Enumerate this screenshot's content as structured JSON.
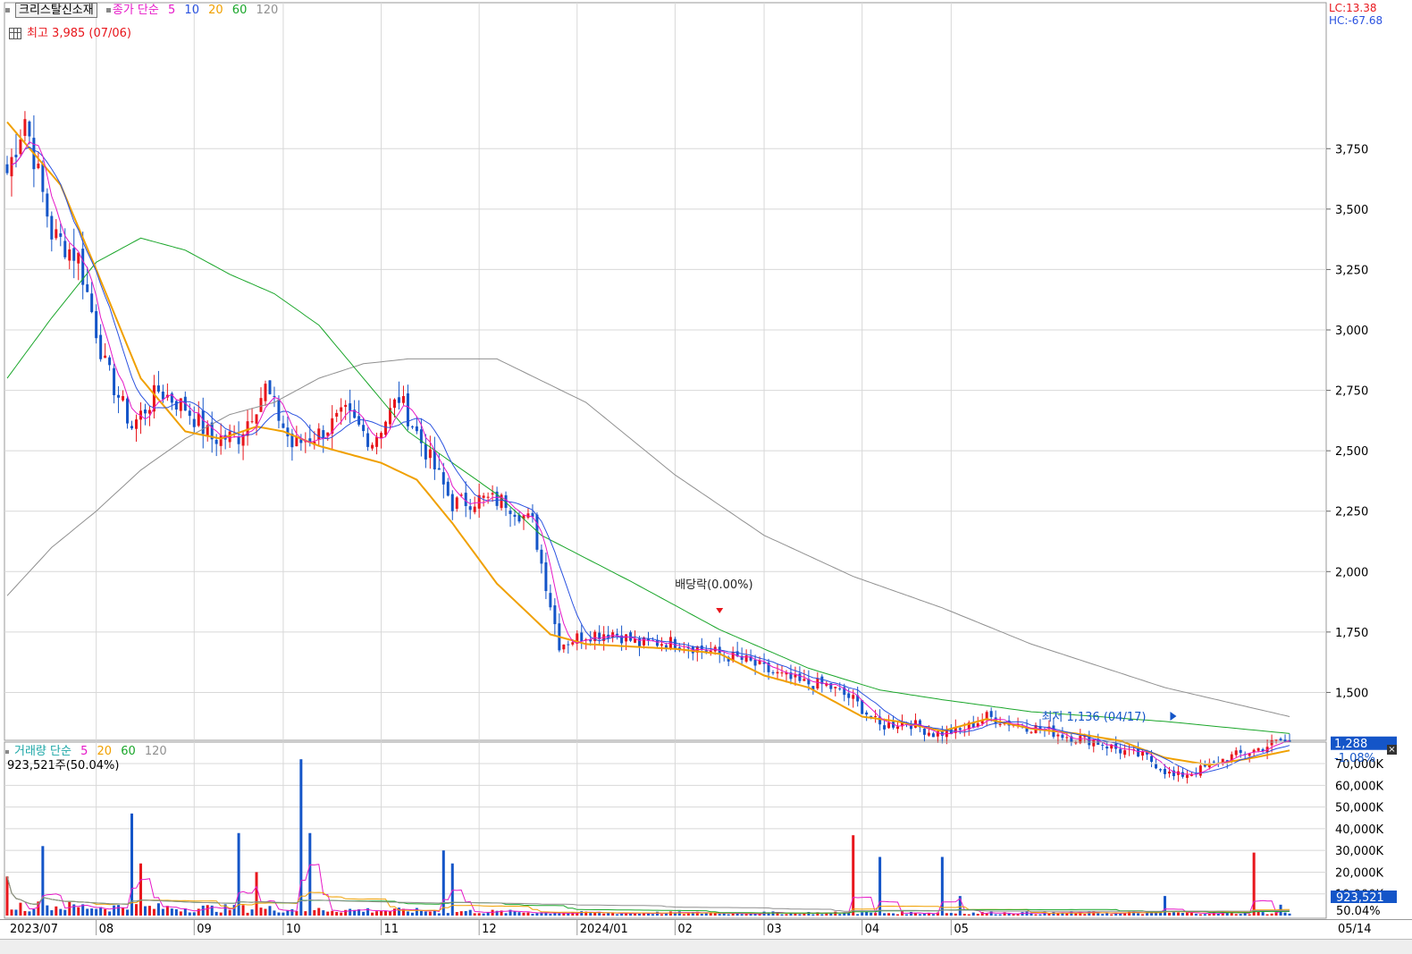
{
  "header": {
    "stock_name": "크리스탈신소재",
    "price_legend_label": "종가 단순",
    "ma_periods": [
      "5",
      "10",
      "20",
      "60",
      "120"
    ],
    "high_label": "최고 3,985 (07/06)",
    "lc_label": "LC:13.38",
    "hc_label": "HC:-67.68"
  },
  "volume_header": {
    "label": "거래량 단순",
    "ma_periods": [
      "5",
      "20",
      "60",
      "120"
    ],
    "current": "923,521주(50.04%)"
  },
  "annotations": {
    "dividend": "배당락(0.00%)",
    "low": "최저 1,136 (04/17)"
  },
  "current_price": {
    "price": "1,288",
    "change": "-1.08%"
  },
  "current_volume": {
    "volume": "923,521",
    "ratio": "50.04%"
  },
  "colors": {
    "up": "#e8161c",
    "down": "#1455c8",
    "ma5": "#e619c8",
    "ma10": "#2a52e0",
    "ma20": "#f0a000",
    "ma60": "#1aa62a",
    "ma120": "#909090",
    "grid": "#d8d8d8"
  },
  "chart_data": [
    {
      "type": "candlestick",
      "x_ticks": [
        "2023/07",
        "08",
        "09",
        "10",
        "11",
        "12",
        "2024/01",
        "02",
        "03",
        "04",
        "05",
        "05/14"
      ],
      "y_ticks": [
        "1,500",
        "1,750",
        "2,000",
        "2,250",
        "2,500",
        "2,750",
        "3,000",
        "3,250",
        "3,500",
        "3,750"
      ],
      "ylim": [
        1080,
        4000
      ],
      "high": 3985,
      "low": 1136,
      "last_close": 1288,
      "close_anchors": [
        [
          0,
          3650
        ],
        [
          4,
          3880
        ],
        [
          10,
          3400
        ],
        [
          16,
          3300
        ],
        [
          22,
          2850
        ],
        [
          28,
          2600
        ],
        [
          34,
          2750
        ],
        [
          40,
          2680
        ],
        [
          46,
          2550
        ],
        [
          52,
          2560
        ],
        [
          58,
          2760
        ],
        [
          64,
          2520
        ],
        [
          70,
          2570
        ],
        [
          76,
          2650
        ],
        [
          82,
          2540
        ],
        [
          88,
          2720
        ],
        [
          94,
          2500
        ],
        [
          100,
          2280
        ],
        [
          106,
          2300
        ],
        [
          112,
          2290
        ],
        [
          118,
          2200
        ],
        [
          124,
          1700
        ],
        [
          130,
          1740
        ],
        [
          136,
          1750
        ],
        [
          142,
          1700
        ],
        [
          148,
          1710
        ],
        [
          154,
          1690
        ],
        [
          160,
          1660
        ],
        [
          166,
          1630
        ],
        [
          172,
          1580
        ],
        [
          178,
          1540
        ],
        [
          184,
          1530
        ],
        [
          190,
          1470
        ],
        [
          196,
          1360
        ],
        [
          202,
          1380
        ],
        [
          208,
          1330
        ],
        [
          214,
          1340
        ],
        [
          220,
          1400
        ],
        [
          226,
          1370
        ],
        [
          232,
          1350
        ],
        [
          238,
          1320
        ],
        [
          244,
          1300
        ],
        [
          250,
          1260
        ],
        [
          256,
          1230
        ],
        [
          262,
          1150
        ],
        [
          268,
          1180
        ],
        [
          274,
          1230
        ],
        [
          280,
          1260
        ],
        [
          286,
          1300
        ],
        [
          288,
          1288
        ]
      ],
      "ma_anchors": {
        "ma20": [
          [
            0,
            3860
          ],
          [
            12,
            3600
          ],
          [
            20,
            3250
          ],
          [
            30,
            2800
          ],
          [
            40,
            2580
          ],
          [
            48,
            2550
          ],
          [
            56,
            2600
          ],
          [
            62,
            2580
          ],
          [
            70,
            2520
          ],
          [
            84,
            2450
          ],
          [
            92,
            2380
          ],
          [
            100,
            2200
          ],
          [
            110,
            1950
          ],
          [
            122,
            1740
          ],
          [
            130,
            1700
          ],
          [
            140,
            1690
          ],
          [
            150,
            1680
          ],
          [
            160,
            1660
          ],
          [
            170,
            1570
          ],
          [
            180,
            1520
          ],
          [
            192,
            1400
          ],
          [
            200,
            1380
          ],
          [
            210,
            1340
          ],
          [
            220,
            1390
          ],
          [
            230,
            1350
          ],
          [
            240,
            1330
          ],
          [
            250,
            1300
          ],
          [
            260,
            1230
          ],
          [
            270,
            1200
          ],
          [
            280,
            1230
          ],
          [
            288,
            1260
          ]
        ],
        "ma60": [
          [
            0,
            2800
          ],
          [
            10,
            3050
          ],
          [
            20,
            3280
          ],
          [
            30,
            3380
          ],
          [
            40,
            3330
          ],
          [
            50,
            3230
          ],
          [
            60,
            3150
          ],
          [
            70,
            3020
          ],
          [
            80,
            2800
          ],
          [
            90,
            2580
          ],
          [
            100,
            2450
          ],
          [
            110,
            2320
          ],
          [
            120,
            2150
          ],
          [
            140,
            1960
          ],
          [
            160,
            1760
          ],
          [
            180,
            1600
          ],
          [
            196,
            1510
          ],
          [
            210,
            1470
          ],
          [
            230,
            1420
          ],
          [
            260,
            1380
          ],
          [
            288,
            1330
          ]
        ],
        "ma120": [
          [
            0,
            1900
          ],
          [
            10,
            2100
          ],
          [
            20,
            2250
          ],
          [
            30,
            2420
          ],
          [
            40,
            2550
          ],
          [
            50,
            2650
          ],
          [
            60,
            2700
          ],
          [
            70,
            2800
          ],
          [
            80,
            2860
          ],
          [
            90,
            2880
          ],
          [
            110,
            2880
          ],
          [
            130,
            2700
          ],
          [
            150,
            2400
          ],
          [
            170,
            2150
          ],
          [
            190,
            1980
          ],
          [
            210,
            1850
          ],
          [
            230,
            1700
          ],
          [
            260,
            1520
          ],
          [
            288,
            1400
          ]
        ]
      }
    },
    {
      "type": "bar",
      "series_name": "거래량",
      "y_ticks": [
        "10,000K",
        "20,000K",
        "30,000K",
        "40,000K",
        "50,000K",
        "60,000K",
        "70,000K"
      ],
      "ylim": [
        0,
        75000
      ],
      "unit": "K",
      "last_volume_k": 923,
      "spikes_k": [
        [
          0,
          18000
        ],
        [
          8,
          32000
        ],
        [
          28,
          47000
        ],
        [
          30,
          24000
        ],
        [
          52,
          38000
        ],
        [
          56,
          20000
        ],
        [
          66,
          72000
        ],
        [
          68,
          38000
        ],
        [
          98,
          30000
        ],
        [
          100,
          24000
        ],
        [
          190,
          37000
        ],
        [
          196,
          27000
        ],
        [
          210,
          27000
        ],
        [
          214,
          9000
        ],
        [
          260,
          9000
        ],
        [
          280,
          29000
        ],
        [
          286,
          5000
        ]
      ]
    }
  ]
}
